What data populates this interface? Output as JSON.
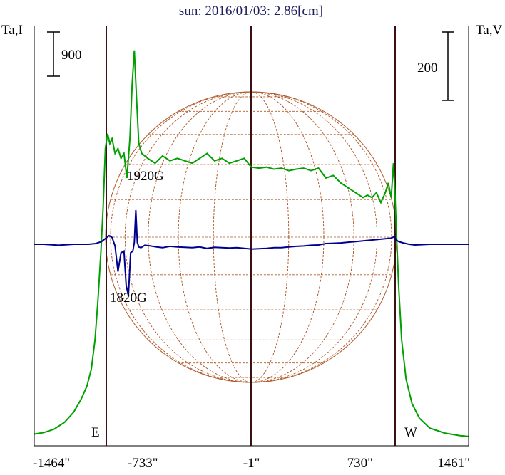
{
  "title": "sun: 2016/01/03: 2.86[cm]",
  "left_axis_label": "Ta,I",
  "right_axis_label": "Ta,V",
  "left_scale_bar_label": "900",
  "right_scale_bar_label": "200",
  "east_label": "E",
  "west_label": "W",
  "annotation_green": "1920G",
  "annotation_blue": "1820G",
  "colors": {
    "intensity": "#00a000",
    "polarization": "#000090",
    "disk": "#b05a2a",
    "limb_lines": "#3a1010",
    "title": "#202060"
  },
  "chart_data": {
    "type": "line",
    "title": "sun: 2016/01/03: 2.86[cm]",
    "xlabel": "",
    "ylabel_left": "Ta,I",
    "ylabel_right": "Ta,V",
    "x_ticks": [
      "-1464\"",
      "-733\"",
      "-1\"",
      "730\"",
      "1461\""
    ],
    "x_tick_values": [
      -1464,
      -733,
      -1,
      730,
      1461
    ],
    "xlim": [
      -1464,
      1461
    ],
    "limb_lines_x": [
      -1000,
      -1,
      970
    ],
    "series": [
      {
        "name": "I",
        "x": [
          -1464,
          -1400,
          -1330,
          -1260,
          -1200,
          -1150,
          -1110,
          -1080,
          -1055,
          -1035,
          -1015,
          -1000,
          -985,
          -970,
          -955,
          -940,
          -920,
          -900,
          -880,
          -860,
          -840,
          -820,
          -805,
          -790,
          -775,
          -760,
          -740,
          -700,
          -650,
          -600,
          -550,
          -500,
          -450,
          -400,
          -350,
          -300,
          -250,
          -200,
          -150,
          -100,
          -50,
          -10,
          0,
          50,
          100,
          150,
          200,
          250,
          300,
          350,
          400,
          450,
          500,
          550,
          600,
          650,
          700,
          750,
          780,
          810,
          840,
          870,
          900,
          920,
          940,
          955,
          965,
          975,
          990,
          1010,
          1040,
          1080,
          1130,
          1200,
          1300,
          1400,
          1461
        ],
        "values": [
          80,
          110,
          180,
          320,
          520,
          780,
          1050,
          1400,
          2000,
          2800,
          3800,
          4700,
          5900,
          6200,
          6000,
          6100,
          5800,
          5900,
          5700,
          5800,
          5300,
          6100,
          7200,
          7900,
          6900,
          6000,
          5800,
          5700,
          5600,
          5750,
          5650,
          5700,
          5650,
          5600,
          5700,
          5800,
          5650,
          5700,
          5600,
          5650,
          5700,
          5550,
          5520,
          5500,
          5520,
          5480,
          5500,
          5450,
          5480,
          5500,
          5450,
          5500,
          5300,
          5350,
          5200,
          5100,
          5000,
          4900,
          4950,
          4900,
          5000,
          4800,
          5000,
          5200,
          4900,
          5600,
          5000,
          4200,
          3100,
          2000,
          1200,
          700,
          400,
          200,
          100,
          50,
          30
        ]
      },
      {
        "name": "V",
        "x": [
          -1464,
          -1400,
          -1300,
          -1200,
          -1100,
          -1050,
          -1010,
          -990,
          -960,
          -940,
          -920,
          -900,
          -880,
          -860,
          -845,
          -830,
          -815,
          -800,
          -790,
          -780,
          -770,
          -760,
          -745,
          -720,
          -680,
          -640,
          -600,
          -550,
          -500,
          -450,
          -400,
          -350,
          -300,
          -250,
          -200,
          -150,
          -100,
          -50,
          0,
          50,
          100,
          150,
          200,
          250,
          300,
          350,
          400,
          450,
          500,
          550,
          600,
          650,
          700,
          750,
          800,
          850,
          900,
          940,
          960,
          975,
          990,
          1020,
          1060,
          1100,
          1200,
          1300,
          1400,
          1461
        ],
        "values": [
          0,
          0,
          -3,
          0,
          0,
          2,
          8,
          15,
          25,
          20,
          -5,
          -80,
          -25,
          -20,
          -120,
          -150,
          -25,
          -20,
          5,
          100,
          5,
          -8,
          -10,
          -3,
          -5,
          -8,
          -10,
          -6,
          -8,
          -9,
          -10,
          -8,
          -12,
          -9,
          -10,
          -11,
          -10,
          -12,
          -14,
          -13,
          -12,
          -10,
          -10,
          -8,
          -6,
          -5,
          -3,
          -2,
          2,
          3,
          4,
          6,
          8,
          10,
          12,
          14,
          16,
          18,
          22,
          12,
          8,
          4,
          0,
          -2,
          0,
          0,
          0,
          0
        ]
      }
    ],
    "annotations": [
      {
        "text": "1920G",
        "series": "I"
      },
      {
        "text": "1820G",
        "series": "V"
      }
    ],
    "grid": false
  }
}
